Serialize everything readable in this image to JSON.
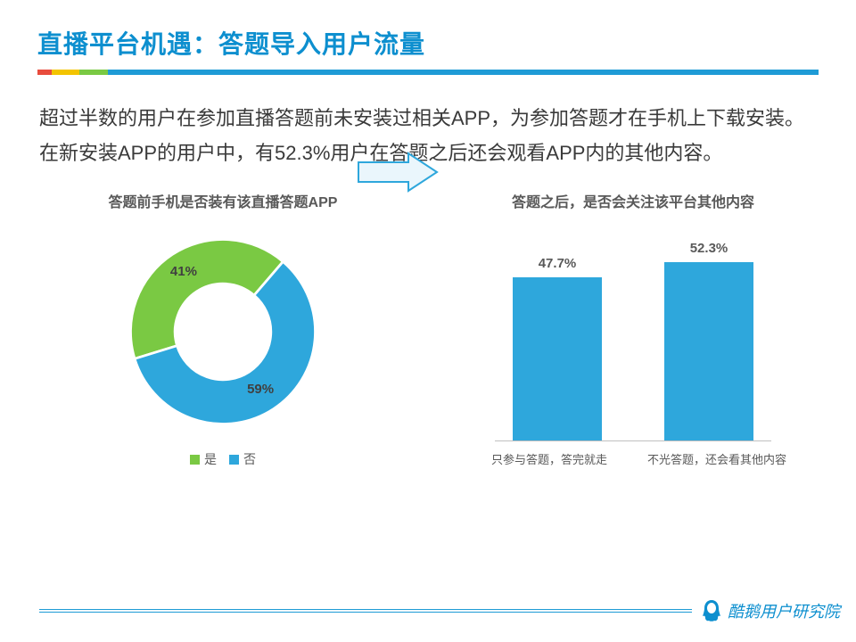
{
  "page": {
    "title": "直播平台机遇：答题导入用户流量",
    "title_color": "#0d8fcf",
    "body": "超过半数的用户在参加直播答题前未安装过相关APP，为参加答题才在手机上下载安装。在新安装APP的用户中，有52.3%用户在答题之后还会观看APP内的其他内容。",
    "body_color": "#3a3a3a",
    "underline_segments": [
      {
        "width_pct": 1.8,
        "color": "#e84c3d"
      },
      {
        "width_pct": 3.6,
        "color": "#f3c400"
      },
      {
        "width_pct": 3.6,
        "color": "#7ac943"
      },
      {
        "width_pct": 91.0,
        "color": "#1e9bd6"
      }
    ]
  },
  "donut": {
    "title": "答题前手机是否装有该直播答题APP",
    "title_color": "#595959",
    "slices": [
      {
        "label": "是",
        "value": 41,
        "display": "41%",
        "color": "#7ac943"
      },
      {
        "label": "否",
        "value": 59,
        "display": "59%",
        "color": "#2ea7dc"
      }
    ],
    "label_color": "#404040",
    "inner_radius_pct": 52,
    "start_angle_deg": 163,
    "direction": "cw",
    "legend_color": "#595959"
  },
  "arrow": {
    "stroke": "#2ea7dc",
    "stroke_width": 2,
    "fill": "#eaf6fc"
  },
  "bars": {
    "title": "答题之后，是否会关注该平台其他内容",
    "title_color": "#595959",
    "bar_color": "#2ea7dc",
    "value_color": "#595959",
    "label_color": "#595959",
    "max_value": 60,
    "items": [
      {
        "label": "只参与答题，答完就走",
        "value": 47.7,
        "display": "47.7%"
      },
      {
        "label": "不光答题，还会看其他内容",
        "value": 52.3,
        "display": "52.3%"
      }
    ],
    "axis_color": "#bfbfbf"
  },
  "footer": {
    "text": "酷鹅用户研究院",
    "text_color": "#0d8fcf",
    "logo_fill": "#0d8fcf",
    "line_color": "#1e9bd6"
  }
}
